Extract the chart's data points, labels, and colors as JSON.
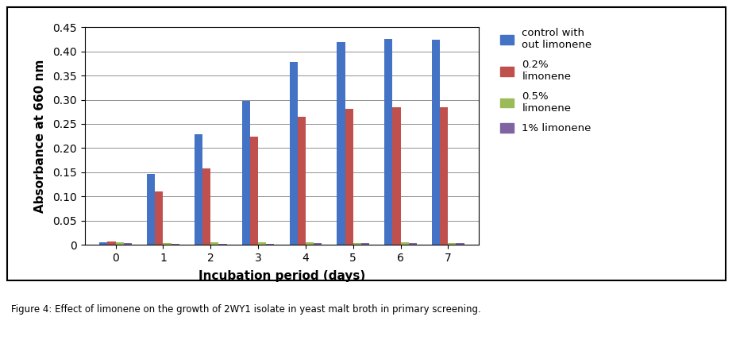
{
  "days": [
    0,
    1,
    2,
    3,
    4,
    5,
    6,
    7
  ],
  "series": {
    "control": [
      0.005,
      0.147,
      0.228,
      0.298,
      0.378,
      0.42,
      0.425,
      0.424
    ],
    "limonene_02": [
      0.007,
      0.11,
      0.158,
      0.224,
      0.265,
      0.282,
      0.285,
      0.284
    ],
    "limonene_05": [
      0.005,
      0.003,
      0.005,
      0.005,
      0.005,
      0.004,
      0.005,
      0.004
    ],
    "limonene_1": [
      0.003,
      0.002,
      0.002,
      0.002,
      0.003,
      0.003,
      0.003,
      0.003
    ]
  },
  "colors": {
    "control": "#4472C4",
    "limonene_02": "#C0504D",
    "limonene_05": "#9BBB59",
    "limonene_1": "#8064A2"
  },
  "legend_labels": {
    "control": "control with\nout limonene",
    "limonene_02": "0.2%\nlimonene",
    "limonene_05": "0.5%\nlimonene",
    "limonene_1": "1% limonene"
  },
  "xlabel": "Incubation period (days)",
  "ylabel": "Absorbance at 660 nm",
  "ylim": [
    0,
    0.45
  ],
  "yticks": [
    0,
    0.05,
    0.1,
    0.15,
    0.2,
    0.25,
    0.3,
    0.35,
    0.4,
    0.45
  ],
  "caption": "Figure 4: Effect of limonene on the growth of 2WY1 isolate in yeast malt broth in primary screening.",
  "background_color": "#FFFFFF"
}
